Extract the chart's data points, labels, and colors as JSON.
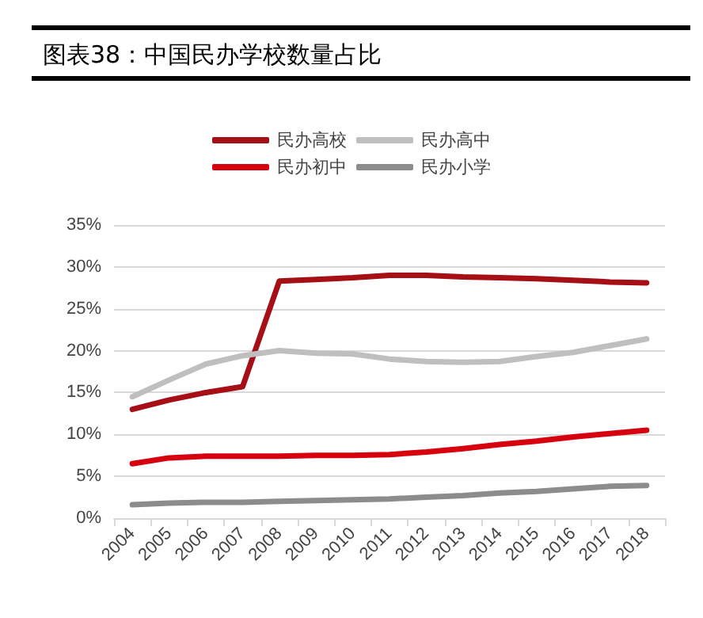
{
  "chart_data": {
    "type": "line",
    "title": "图表38：中国民办学校数量占比",
    "categories": [
      "2004",
      "2005",
      "2006",
      "2007",
      "2008",
      "2009",
      "2010",
      "2011",
      "2012",
      "2013",
      "2014",
      "2015",
      "2016",
      "2017",
      "2018"
    ],
    "series": [
      {
        "name": "民办高校",
        "color": "#a50f15",
        "values": [
          13.0,
          14.1,
          15.0,
          15.7,
          28.3,
          28.5,
          28.7,
          29.0,
          29.0,
          28.8,
          28.7,
          28.6,
          28.4,
          28.2,
          28.1
        ]
      },
      {
        "name": "民办高中",
        "color": "#bfbfbf",
        "values": [
          14.5,
          16.5,
          18.4,
          19.4,
          20.0,
          19.7,
          19.6,
          19.0,
          18.7,
          18.6,
          18.7,
          19.3,
          19.8,
          20.6,
          21.4
        ]
      },
      {
        "name": "民办初中",
        "color": "#d7000f",
        "values": [
          6.5,
          7.2,
          7.4,
          7.4,
          7.4,
          7.5,
          7.5,
          7.6,
          7.9,
          8.3,
          8.8,
          9.2,
          9.7,
          10.1,
          10.5
        ]
      },
      {
        "name": "民办小学",
        "color": "#8c8c8c",
        "values": [
          1.6,
          1.8,
          1.9,
          1.9,
          2.0,
          2.1,
          2.2,
          2.3,
          2.5,
          2.7,
          3.0,
          3.2,
          3.5,
          3.8,
          3.9
        ]
      }
    ],
    "ylim": [
      0,
      35
    ],
    "yticks": [
      {
        "value": 0,
        "label": "0%"
      },
      {
        "value": 5,
        "label": "5%"
      },
      {
        "value": 10,
        "label": "10%"
      },
      {
        "value": 15,
        "label": "15%"
      },
      {
        "value": 20,
        "label": "20%"
      },
      {
        "value": 25,
        "label": "25%"
      },
      {
        "value": 30,
        "label": "30%"
      },
      {
        "value": 35,
        "label": "35%"
      }
    ],
    "grid": "y",
    "legend": "top",
    "marker": "none",
    "line_style": "solid"
  }
}
